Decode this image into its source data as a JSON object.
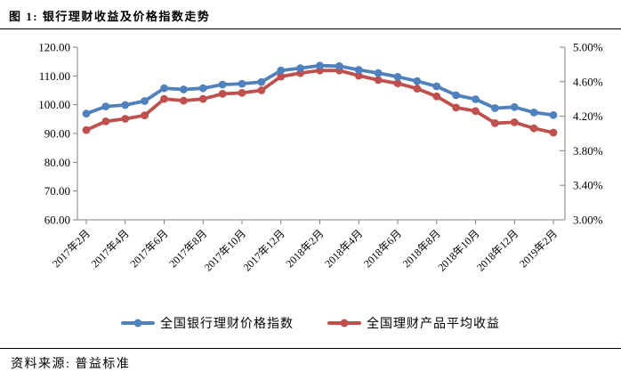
{
  "title": "图 1: 银行理财收益及价格指数走势",
  "source": "资料来源: 普益标准",
  "colors": {
    "series_blue": "#4F81BD",
    "series_red": "#C0504D",
    "axis_line": "#808080",
    "text": "#000000"
  },
  "chart_data": {
    "type": "line",
    "title": "银行理财收益及价格指数走势",
    "categories": [
      "2017年2月",
      "2017年3月",
      "2017年4月",
      "2017年5月",
      "2017年6月",
      "2017年7月",
      "2017年8月",
      "2017年9月",
      "2017年10月",
      "2017年11月",
      "2017年12月",
      "2018年1月",
      "2018年2月",
      "2018年3月",
      "2018年4月",
      "2018年5月",
      "2018年6月",
      "2018年7月",
      "2018年8月",
      "2018年9月",
      "2018年10月",
      "2018年11月",
      "2018年12月",
      "2019年1月",
      "2019年2月"
    ],
    "x_tick_labels_shown": [
      "2017年2月",
      "2017年4月",
      "2017年6月",
      "2017年8月",
      "2017年10月",
      "2017年12月",
      "2018年2月",
      "2018年4月",
      "2018年6月",
      "2018年8月",
      "2018年10月",
      "2018年12月",
      "2019年2月"
    ],
    "series": [
      {
        "name": "全国银行理财价格指数",
        "axis": "left",
        "color": "#4F81BD",
        "values": [
          96.9,
          99.4,
          99.9,
          101.3,
          105.7,
          105.3,
          105.7,
          107.0,
          107.3,
          107.9,
          111.9,
          112.7,
          113.6,
          113.4,
          112.1,
          111.0,
          109.7,
          108.2,
          106.4,
          103.3,
          101.9,
          98.8,
          99.2,
          97.3,
          96.4
        ]
      },
      {
        "name": "全国理财产品平均收益",
        "axis": "right",
        "color": "#C0504D",
        "values": [
          4.04,
          4.14,
          4.17,
          4.21,
          4.4,
          4.38,
          4.4,
          4.46,
          4.47,
          4.5,
          4.66,
          4.7,
          4.73,
          4.73,
          4.67,
          4.62,
          4.58,
          4.52,
          4.43,
          4.3,
          4.26,
          4.12,
          4.13,
          4.06,
          4.01
        ]
      }
    ],
    "left_axis": {
      "min": 60,
      "max": 120,
      "step": 10,
      "tick_labels": [
        "60.00",
        "70.00",
        "80.00",
        "90.00",
        "100.00",
        "110.00",
        "120.00"
      ]
    },
    "right_axis": {
      "min": 3.0,
      "max": 5.0,
      "step": 0.4,
      "tick_labels": [
        "3.00%",
        "3.40%",
        "3.80%",
        "4.20%",
        "4.60%",
        "5.00%"
      ]
    },
    "grid": false,
    "legend_position": "bottom"
  }
}
